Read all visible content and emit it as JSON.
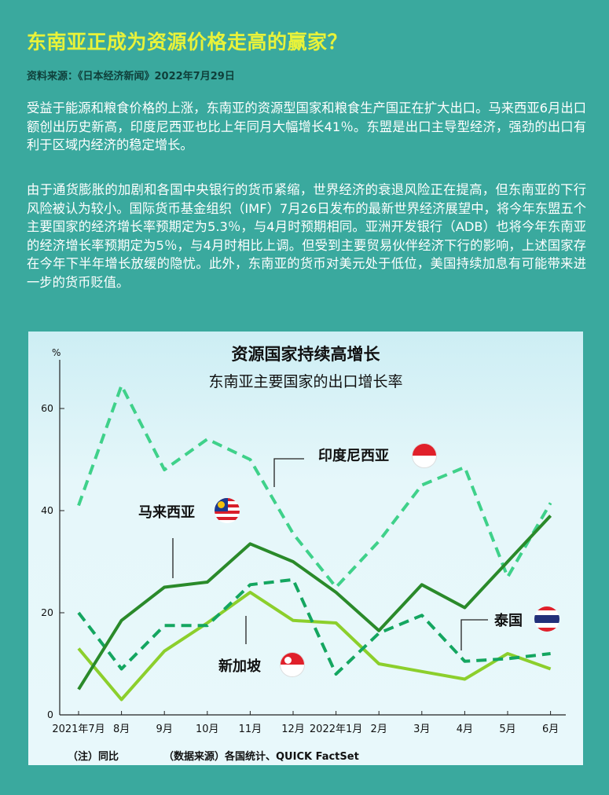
{
  "header": {
    "title": "东南亚正成为资源价格走高的赢家？",
    "source": "资料来源：《日本经济新闻》2022年7月29日"
  },
  "article": {
    "paragraphs": [
      "受益于能源和粮食价格的上涨，东南亚的资源型国家和粮食生产国正在扩大出口。马来西亚6月出口额创出历史新高，印度尼西亚也比上年同月大幅增长41％。东盟是出口主导型经济，强劲的出口有利于区域内经济的稳定增长。",
      "由于通货膨胀的加剧和各国中央银行的货币紧缩，世界经济的衰退风险正在提高，但东南亚的下行风险被认为较小。国际货币基金组织（IMF）7月26日发布的最新世界经济展望中，将今年东盟五个主要国家的经济增长率预期定为5.3％，与4月时预期相同。亚洲开发银行（ADB）也将今年东南亚的经济增长率预期定为5％，与4月时相比上调。但受到主要贸易伙伴经济下行的影响，上述国家存在今年下半年增长放缓的隐忧。此外，东南亚的货币对美元处于低位，美国持续加息有可能带来进一步的货币贬值。"
    ]
  },
  "chart_data": {
    "type": "line",
    "title": "资源国家持续高增长",
    "subtitle": "东南亚主要国家的出口增长率",
    "ylabel": "%",
    "ylim": [
      0,
      68
    ],
    "yticks": [
      0,
      20,
      40,
      60
    ],
    "categories": [
      "2021年7月",
      "8月",
      "9月",
      "10月",
      "11月",
      "12月",
      "2022年1月",
      "2月",
      "3月",
      "4月",
      "5月",
      "6月"
    ],
    "series": [
      {
        "name": "马来西亚",
        "color": "#2a8a2a",
        "style": "solid",
        "values": [
          5,
          18.5,
          25,
          26,
          33.5,
          30,
          24,
          16.5,
          25.5,
          21,
          30,
          39
        ]
      },
      {
        "name": "印度尼西亚",
        "color": "#3fd18a",
        "style": "dashed",
        "values": [
          41,
          64.5,
          48,
          54,
          50,
          35.5,
          25,
          34,
          45,
          48.5,
          27,
          41.5
        ]
      },
      {
        "name": "新加坡",
        "color": "#8ccf2c",
        "style": "solid",
        "values": [
          13,
          3,
          12.5,
          18,
          24,
          18.5,
          18,
          10,
          8.5,
          7,
          12,
          9
        ]
      },
      {
        "name": "泰国",
        "color": "#14a660",
        "style": "dashed",
        "values": [
          20,
          9,
          17.5,
          17.5,
          25.5,
          26.5,
          8,
          16,
          19.5,
          10.5,
          11,
          12
        ]
      }
    ],
    "notes": [
      "（注）同比",
      "（数据来源）各国统计、QUICK FactSet"
    ]
  }
}
